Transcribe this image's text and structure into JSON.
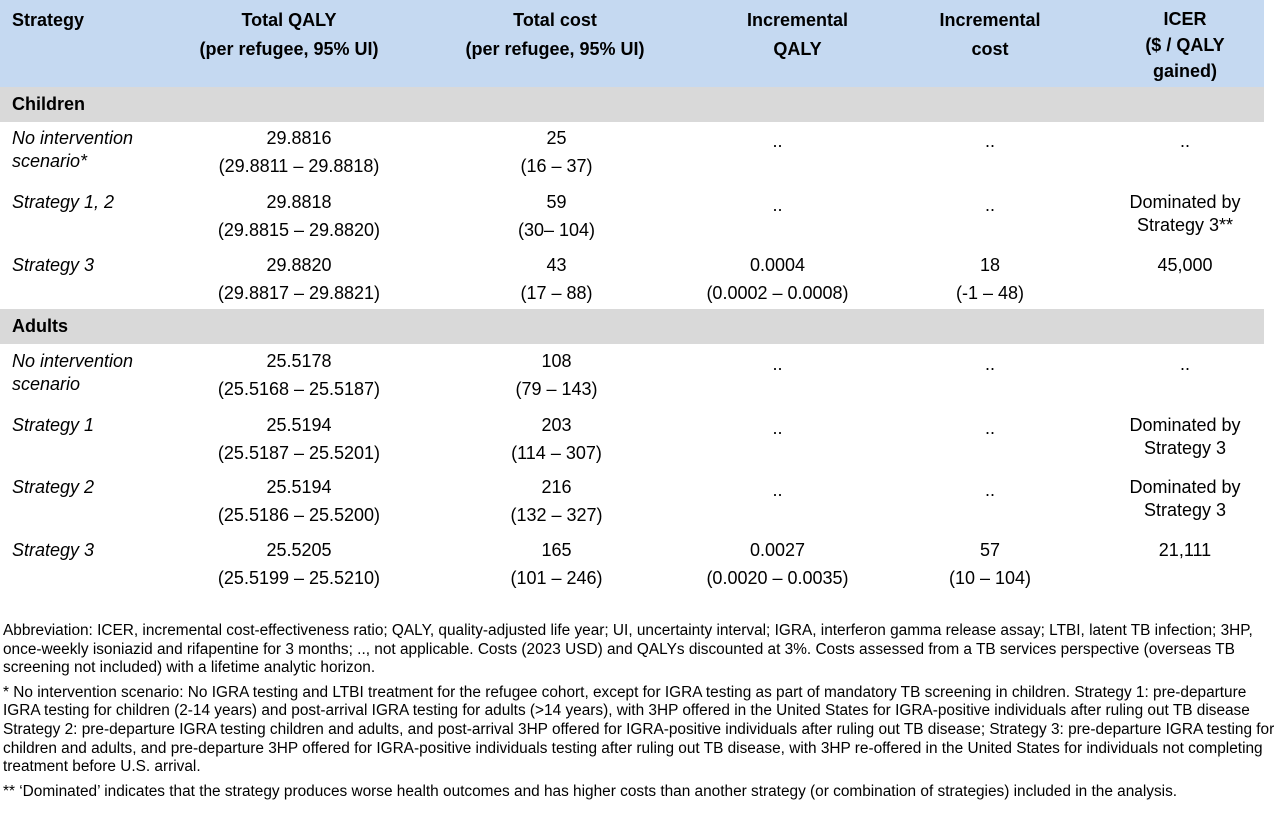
{
  "header": {
    "strategy": "Strategy",
    "total_qaly": [
      "Total QALY",
      "(per refugee, 95% UI)"
    ],
    "total_cost": [
      "Total cost",
      "(per refugee, 95% UI)"
    ],
    "inc_qaly": [
      "Incremental",
      "QALY"
    ],
    "inc_cost": [
      "Incremental",
      "cost"
    ],
    "icer": [
      "ICER",
      "($ / QALY",
      "gained)"
    ]
  },
  "groups": {
    "children": {
      "label": "Children",
      "rows": [
        {
          "name": [
            "No intervention",
            "scenario*"
          ],
          "qaly": [
            "29.8816",
            "(29.8811 – 29.8818)"
          ],
          "cost": [
            "25",
            "(16 – 37)"
          ],
          "inc_qaly": [
            "..",
            ""
          ],
          "inc_cost": [
            "..",
            ""
          ],
          "icer": [
            ".."
          ]
        },
        {
          "name": [
            "Strategy 1, 2"
          ],
          "qaly": [
            "29.8818",
            "(29.8815 – 29.8820)"
          ],
          "cost": [
            "59",
            "(30– 104)"
          ],
          "inc_qaly": [
            "..",
            ""
          ],
          "inc_cost": [
            "..",
            ""
          ],
          "icer": [
            "Dominated by",
            "Strategy 3**"
          ]
        },
        {
          "name": [
            "Strategy 3"
          ],
          "qaly": [
            "29.8820",
            "(29.8817 – 29.8821)"
          ],
          "cost": [
            "43",
            "(17 – 88)"
          ],
          "inc_qaly": [
            "0.0004",
            "(0.0002 – 0.0008)"
          ],
          "inc_cost": [
            "18",
            "(-1 – 48)"
          ],
          "icer": [
            "45,000"
          ]
        }
      ]
    },
    "adults": {
      "label": "Adults",
      "rows": [
        {
          "name": [
            "No intervention",
            "scenario"
          ],
          "qaly": [
            "25.5178",
            "(25.5168 – 25.5187)"
          ],
          "cost": [
            "108",
            "(79 – 143)"
          ],
          "inc_qaly": [
            "..",
            ""
          ],
          "inc_cost": [
            "..",
            ""
          ],
          "icer": [
            ".."
          ]
        },
        {
          "name": [
            "Strategy 1"
          ],
          "qaly": [
            "25.5194",
            "(25.5187 – 25.5201)"
          ],
          "cost": [
            "203",
            "(114 – 307)"
          ],
          "inc_qaly": [
            "..",
            ""
          ],
          "inc_cost": [
            "..",
            ""
          ],
          "icer": [
            "Dominated by",
            "Strategy 3"
          ]
        },
        {
          "name": [
            "Strategy 2"
          ],
          "qaly": [
            "25.5194",
            "(25.5186 – 25.5200)"
          ],
          "cost": [
            "216",
            "(132 – 327)"
          ],
          "inc_qaly": [
            "..",
            ""
          ],
          "inc_cost": [
            "..",
            ""
          ],
          "icer": [
            "Dominated by",
            "Strategy 3"
          ]
        },
        {
          "name": [
            "Strategy 3"
          ],
          "qaly": [
            "25.5205",
            "(25.5199 – 25.5210)"
          ],
          "cost": [
            "165",
            "(101 – 246)"
          ],
          "inc_qaly": [
            "0.0027",
            "(0.0020 – 0.0035)"
          ],
          "inc_cost": [
            "57",
            "(10 – 104)"
          ],
          "icer": [
            "21,111"
          ]
        }
      ]
    }
  },
  "notes": {
    "abbreviation": "Abbreviation: ICER, incremental cost-effectiveness ratio; QALY, quality-adjusted life year; UI, uncertainty interval; IGRA, interferon gamma release assay; LTBI, latent TB infection; 3HP, once-weekly isoniazid and rifapentine for 3 months; .., not applicable. Costs (2023 USD) and QALYs discounted at 3%. Costs assessed from a TB services perspective (overseas TB screening not included) with a lifetime analytic horizon.",
    "footnote1": "* No intervention scenario: No IGRA testing and LTBI treatment for the refugee cohort, except for IGRA testing as part of mandatory TB screening in children. Strategy 1: pre-departure IGRA testing for children (2-14 years) and post-arrival IGRA testing for adults (>14 years), with 3HP offered in the United States for IGRA-positive individuals after ruling out TB disease Strategy 2: pre-departure IGRA testing children and adults, and post-arrival 3HP offered for IGRA-positive individuals after ruling out TB disease; Strategy 3: pre-departure IGRA testing for children and adults, and pre-departure 3HP offered for IGRA-positive individuals testing after ruling out TB disease, with 3HP re-offered in the United States for individuals not completing treatment before U.S. arrival.",
    "footnote2": "** ‘Dominated’ indicates that the strategy produces worse health outcomes and has higher costs than another strategy (or combination of strategies) included in the analysis."
  }
}
